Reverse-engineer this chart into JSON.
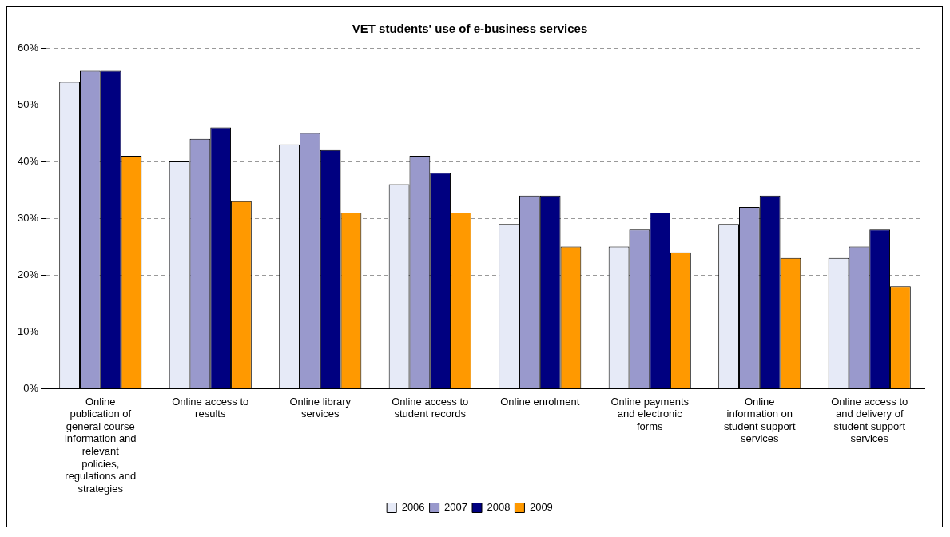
{
  "chart_data": {
    "type": "bar",
    "title": "VET students' use of e-business services",
    "categories": [
      "Online publication of general course information and relevant policies, regulations and strategies",
      "Online access to results",
      "Online library services",
      "Online access to student records",
      "Online enrolment",
      "Online payments and electronic forms",
      "Online information on student support services",
      "Online access to and delivery of student support services"
    ],
    "series": [
      {
        "name": "2006",
        "color": "#e6eaf7",
        "values": [
          54,
          40,
          43,
          36,
          29,
          25,
          29,
          23
        ]
      },
      {
        "name": "2007",
        "color": "#9999cc",
        "values": [
          56,
          44,
          45,
          41,
          34,
          28,
          32,
          25
        ]
      },
      {
        "name": "2008",
        "color": "#000080",
        "values": [
          56,
          46,
          42,
          38,
          34,
          31,
          34,
          28
        ]
      },
      {
        "name": "2009",
        "color": "#ff9900",
        "values": [
          41,
          33,
          31,
          31,
          25,
          24,
          23,
          18
        ]
      }
    ],
    "ylim": [
      0,
      60
    ],
    "yticks": [
      {
        "value": 0,
        "label": "0%"
      },
      {
        "value": 10,
        "label": "10%"
      },
      {
        "value": 20,
        "label": "20%"
      },
      {
        "value": 30,
        "label": "30%"
      },
      {
        "value": 40,
        "label": "40%"
      },
      {
        "value": 50,
        "label": "50%"
      },
      {
        "value": 60,
        "label": "60%"
      }
    ],
    "grid": "y",
    "legend": "bottom"
  }
}
